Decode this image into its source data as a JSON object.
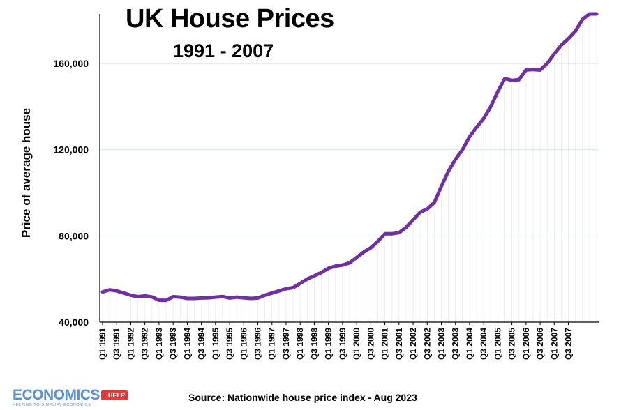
{
  "chart_data": {
    "type": "line",
    "title": "UK House Prices",
    "subtitle": "1991 - 2007",
    "ylabel": "Price of average house",
    "xlabel": "",
    "ylim": [
      40000,
      183000
    ],
    "yticks": [
      40000,
      80000,
      120000,
      160000
    ],
    "ytick_labels": [
      "40,000",
      "80,000",
      "120,000",
      "160,000"
    ],
    "grid": true,
    "x_tick_labels": [
      "Q1 1991",
      "Q3 1991",
      "Q1 1992",
      "Q3 1992",
      "Q1 1993",
      "Q3 1993",
      "Q1 1994",
      "Q3 1994",
      "Q1 1995",
      "Q3 1995",
      "Q1 1996",
      "Q3 1996",
      "Q1 1997",
      "Q3 1997",
      "Q1 1998",
      "Q3 1998",
      "Q1 1999",
      "Q3 1999",
      "Q1 2000",
      "Q3 2000",
      "Q1 2001",
      "Q3 2001",
      "Q1 2002",
      "Q3 2002",
      "Q1 2003",
      "Q3 2003",
      "Q1 2004",
      "Q3 2004",
      "Q1 2005",
      "Q3 2005",
      "Q1 2006",
      "Q3 2006",
      "Q1 2007",
      "Q3 2007"
    ],
    "series": [
      {
        "color": "#7030a0",
        "values": [
          54000,
          55000,
          54500,
          53500,
          52500,
          51800,
          52200,
          51700,
          50200,
          50100,
          51800,
          51600,
          51000,
          51000,
          51200,
          51300,
          51600,
          51900,
          51200,
          51600,
          51300,
          51000,
          51200,
          52500,
          53500,
          54500,
          55500,
          56000,
          58000,
          60000,
          61500,
          63000,
          65000,
          66000,
          66500,
          67500,
          70000,
          72500,
          74500,
          77500,
          81000,
          81000,
          81500,
          84000,
          87500,
          91000,
          92500,
          95500,
          103000,
          110000,
          115500,
          120000,
          126000,
          130500,
          134500,
          140000,
          147000,
          153000,
          152200,
          152500,
          157000,
          157200,
          157000,
          160000,
          164500,
          168500,
          171500,
          175000,
          180500,
          183000,
          183000
        ]
      }
    ]
  },
  "source": "Source: Nationwide house price index - Aug 2023",
  "logo": {
    "name": "ECONOMICS",
    "badge": "HELP",
    "tagline": "HELPING TO SIMPLIFY ECONOMICS",
    "color": "#5b8fd6",
    "badge_color": "#e03b3b"
  }
}
